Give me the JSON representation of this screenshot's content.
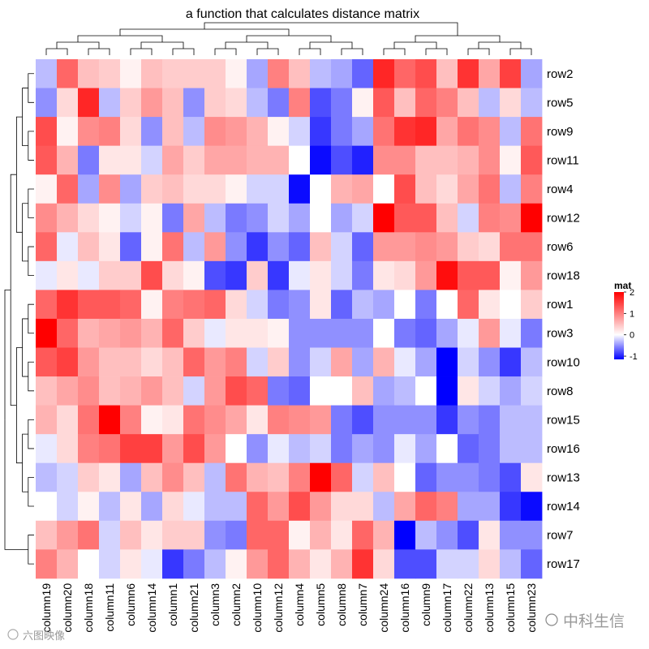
{
  "chart_data": {
    "type": "heatmap",
    "title": "a function that calculates distance matrix",
    "rows": [
      "row2",
      "row5",
      "row9",
      "row11",
      "row4",
      "row12",
      "row6",
      "row18",
      "row1",
      "row3",
      "row10",
      "row8",
      "row15",
      "row16",
      "row13",
      "row14",
      "row7",
      "row17"
    ],
    "columns": [
      "column19",
      "column20",
      "column18",
      "column11",
      "column6",
      "column14",
      "column1",
      "column21",
      "column3",
      "column2",
      "column10",
      "column12",
      "column4",
      "column5",
      "column8",
      "column7",
      "column24",
      "column16",
      "column9",
      "column17",
      "column22",
      "column13",
      "column15",
      "column23"
    ],
    "values": [
      [
        -0.3,
        1.2,
        0.5,
        0.4,
        0.1,
        0.5,
        0.4,
        0.4,
        0.4,
        0.1,
        -0.4,
        1.0,
        0.5,
        -0.3,
        -0.4,
        -0.7,
        1.7,
        1.2,
        1.4,
        0.5,
        1.6,
        0.7,
        1.5,
        -0.4
      ],
      [
        -0.5,
        0.3,
        1.7,
        -0.3,
        0.4,
        0.8,
        0.5,
        -0.5,
        0.4,
        0.3,
        -0.3,
        -0.6,
        1.0,
        -0.8,
        -0.6,
        0.1,
        1.3,
        0.5,
        1.2,
        1.0,
        0.5,
        -0.3,
        0.3,
        -0.3
      ],
      [
        1.4,
        0.1,
        0.9,
        1.0,
        0.3,
        -0.5,
        0.5,
        -0.3,
        0.9,
        0.8,
        0.6,
        0.1,
        -0.2,
        -0.9,
        -0.6,
        -0.4,
        1.1,
        1.6,
        1.7,
        0.7,
        1.1,
        0.9,
        -0.3,
        1.1
      ],
      [
        1.3,
        0.6,
        -0.6,
        0.2,
        0.2,
        -0.2,
        0.7,
        0.4,
        0.7,
        0.7,
        0.6,
        0.6,
        0.0,
        -1.1,
        -0.8,
        -1.0,
        0.9,
        0.9,
        0.5,
        0.5,
        0.6,
        0.9,
        0.1,
        1.3
      ],
      [
        0.1,
        1.2,
        -0.4,
        0.9,
        -0.4,
        0.4,
        0.5,
        0.3,
        0.3,
        0.1,
        -0.2,
        -0.2,
        -1.1,
        0.0,
        0.6,
        0.7,
        0.0,
        1.4,
        0.5,
        0.3,
        0.7,
        1.1,
        -0.3,
        1.0
      ],
      [
        0.9,
        0.6,
        0.3,
        0.1,
        -0.2,
        0.1,
        -0.6,
        0.7,
        -0.3,
        -0.6,
        -0.5,
        -0.2,
        -0.4,
        0.0,
        -0.4,
        -0.2,
        2.0,
        1.3,
        1.3,
        0.5,
        -0.2,
        1.0,
        0.9,
        2.0
      ],
      [
        1.2,
        -0.1,
        0.5,
        0.2,
        -0.7,
        0.1,
        1.1,
        -0.3,
        0.8,
        -0.5,
        -0.9,
        -0.5,
        -0.7,
        0.5,
        -0.2,
        -0.7,
        0.8,
        0.8,
        0.9,
        0.8,
        0.4,
        0.3,
        1.1,
        1.1
      ],
      [
        -0.1,
        0.2,
        -0.1,
        0.4,
        0.4,
        1.4,
        0.3,
        0.1,
        -0.8,
        -0.9,
        0.4,
        -0.9,
        -0.1,
        0.2,
        -0.2,
        -0.6,
        0.2,
        0.3,
        0.8,
        1.9,
        1.3,
        1.3,
        0.1,
        0.8
      ],
      [
        1.2,
        1.6,
        1.3,
        1.3,
        1.2,
        0.1,
        1.0,
        1.1,
        1.2,
        0.3,
        -0.2,
        -0.6,
        -0.5,
        0.2,
        -0.7,
        -0.3,
        -0.4,
        0.0,
        -0.6,
        0.0,
        1.2,
        0.2,
        0.0,
        0.4
      ],
      [
        2.0,
        1.2,
        0.6,
        0.7,
        0.8,
        0.6,
        1.2,
        0.4,
        -0.1,
        0.2,
        0.2,
        0.1,
        -0.5,
        -0.5,
        -0.5,
        -0.5,
        0.0,
        -0.6,
        -0.7,
        -0.4,
        -0.1,
        0.8,
        -0.1,
        -0.6
      ],
      [
        1.3,
        1.5,
        0.8,
        0.5,
        0.5,
        0.3,
        0.5,
        1.2,
        0.8,
        1.0,
        -0.2,
        0.4,
        -0.5,
        -0.2,
        0.7,
        -0.4,
        0.6,
        -0.1,
        -0.4,
        -1.2,
        -0.2,
        -0.5,
        -0.9,
        -0.3
      ],
      [
        0.5,
        0.7,
        0.9,
        0.5,
        0.6,
        0.8,
        0.5,
        -0.2,
        0.8,
        1.4,
        1.2,
        -0.6,
        -0.7,
        0.0,
        0.0,
        0.5,
        -0.4,
        -0.3,
        0.0,
        -1.2,
        0.2,
        -0.2,
        -0.4,
        -0.2
      ],
      [
        0.6,
        0.3,
        1.1,
        2.0,
        1.0,
        0.1,
        0.2,
        1.1,
        0.9,
        0.7,
        0.2,
        1.0,
        0.9,
        0.8,
        -0.6,
        -0.8,
        -0.5,
        -0.5,
        -0.5,
        -0.9,
        -0.5,
        -0.6,
        -0.3,
        -0.3
      ],
      [
        -0.1,
        0.3,
        1.0,
        1.1,
        1.5,
        1.5,
        0.8,
        1.4,
        0.8,
        0.0,
        -0.5,
        -0.1,
        -0.3,
        -0.2,
        -0.6,
        -0.4,
        -0.5,
        -0.1,
        -0.4,
        0.0,
        -0.7,
        -0.6,
        -0.3,
        -0.3
      ],
      [
        -0.3,
        -0.2,
        0.4,
        0.2,
        -0.4,
        0.5,
        0.9,
        0.5,
        -0.3,
        1.1,
        0.6,
        0.5,
        1.0,
        2.0,
        1.2,
        -0.2,
        0.5,
        0.0,
        -0.7,
        -0.5,
        -0.5,
        -0.6,
        -0.8,
        0.2
      ],
      [
        0.0,
        -0.2,
        0.1,
        -0.3,
        0.2,
        -0.4,
        0.3,
        -0.1,
        -0.3,
        -0.3,
        1.2,
        0.8,
        1.4,
        0.8,
        0.3,
        0.3,
        -0.3,
        0.7,
        1.2,
        1.0,
        -0.4,
        -0.4,
        -0.9,
        -1.1
      ],
      [
        0.5,
        0.8,
        1.1,
        -0.2,
        0.5,
        0.2,
        0.4,
        0.4,
        -0.5,
        -0.6,
        1.2,
        1.2,
        0.1,
        0.6,
        0.2,
        1.2,
        0.6,
        -1.2,
        -0.3,
        -0.5,
        -0.8,
        0.2,
        -0.5,
        -0.5
      ],
      [
        1.0,
        0.6,
        0.0,
        -0.2,
        0.2,
        -0.1,
        -0.9,
        -0.6,
        -0.3,
        0.1,
        0.8,
        1.2,
        0.6,
        0.2,
        0.6,
        1.6,
        0.3,
        -0.8,
        -0.8,
        -0.2,
        -0.2,
        0.3,
        -0.3,
        -0.7
      ]
    ],
    "legend": {
      "title": "mat",
      "ticks": [
        2,
        1,
        0,
        -1
      ],
      "range": [
        -1.15,
        2.0
      ],
      "colors": {
        "low": "#0000ff",
        "mid": "#ffffff",
        "high": "#ff0000"
      }
    }
  },
  "watermarks": {
    "left": "六图映像",
    "right": "中科生信"
  }
}
